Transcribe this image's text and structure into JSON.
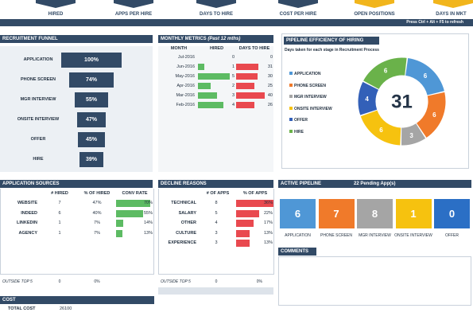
{
  "kpis": {
    "labels": [
      "HIRED",
      "APPS PER HIRE",
      "DAYS TO HIRE",
      "COST PER HIRE",
      "OPEN POSITIONS",
      "DAYS IN MKT"
    ],
    "shortcut": "Press Ctrl + Alt + F5 to refresh"
  },
  "funnel": {
    "title": "RECRUITMENT FUNNEL",
    "stages": [
      {
        "label": "APPLICATION",
        "value": "100%"
      },
      {
        "label": "PHONE SCREEN",
        "value": "74%"
      },
      {
        "label": "MGR INTERVIEW",
        "value": "55%"
      },
      {
        "label": "ONSITE INTERVIEW",
        "value": "47%"
      },
      {
        "label": "OFFER",
        "value": "45%"
      },
      {
        "label": "HIRE",
        "value": "39%"
      }
    ],
    "pct": [
      100,
      74,
      55,
      47,
      45,
      39
    ]
  },
  "metrics": {
    "title": "MONTHLY METRICS",
    "subtitle": "(Past 12 mths)",
    "headers": [
      "MONTH",
      "HIRED",
      "DAYS TO HIRE"
    ],
    "rows": [
      {
        "month": "Jul-2016",
        "hired": "0",
        "days": "0",
        "h": 0,
        "d": 0
      },
      {
        "month": "Jun-2016",
        "hired": "1",
        "days": "31",
        "h": 1,
        "d": 31
      },
      {
        "month": "May-2016",
        "hired": "5",
        "days": "30",
        "h": 5,
        "d": 30
      },
      {
        "month": "Apr-2016",
        "hired": "2",
        "days": "25",
        "h": 2,
        "d": 25
      },
      {
        "month": "Mar-2016",
        "hired": "3",
        "days": "40",
        "h": 3,
        "d": 40
      },
      {
        "month": "Feb-2016",
        "hired": "4",
        "days": "26",
        "h": 4,
        "d": 26
      }
    ]
  },
  "pipeline": {
    "title": "PIPELINE EFFICIENCY OF HIRING",
    "subtitle": "Days taken for each stage in Recruitment Process",
    "total": "31",
    "legend": [
      {
        "label": "APPLICATION",
        "color": "#4f97d6"
      },
      {
        "label": "PHONE SCREEN",
        "color": "#f07a2a"
      },
      {
        "label": "MGR INTERVIEW",
        "color": "#a5a5a5"
      },
      {
        "label": "ONSITE INTERVIEW",
        "color": "#f6c20f"
      },
      {
        "label": "OFFER",
        "color": "#3360b8"
      },
      {
        "label": "HIRE",
        "color": "#6ab24a"
      }
    ],
    "segments": [
      {
        "value": 6,
        "label": "6",
        "color": "#4f97d6"
      },
      {
        "value": 6,
        "label": "6",
        "color": "#f07a2a"
      },
      {
        "value": 3,
        "label": "3",
        "color": "#a5a5a5"
      },
      {
        "value": 6,
        "label": "6",
        "color": "#f6c20f"
      },
      {
        "value": 4,
        "label": "4",
        "color": "#3360b8"
      },
      {
        "value": 6,
        "label": "6",
        "color": "#6ab24a"
      }
    ]
  },
  "sources": {
    "title": "APPLICATION SOURCES",
    "headers": [
      "# HIRED",
      "% OF HIRED",
      "CONV RATE"
    ],
    "rows": [
      {
        "name": "WEBSITE",
        "hired": "7",
        "pct": "47%",
        "conv": "70%",
        "c": 70
      },
      {
        "name": "INDEED",
        "hired": "6",
        "pct": "40%",
        "conv": "55%",
        "c": 55
      },
      {
        "name": "LINKEDIN",
        "hired": "1",
        "pct": "7%",
        "conv": "14%",
        "c": 14
      },
      {
        "name": "AGENCY",
        "hired": "1",
        "pct": "7%",
        "conv": "13%",
        "c": 13
      }
    ],
    "outside": {
      "name": "OUTSIDE TOP 5",
      "hired": "0",
      "pct": "0%"
    }
  },
  "decline": {
    "title": "DECLINE REASONS",
    "headers": [
      "# OF APPS",
      "% OF APPS"
    ],
    "rows": [
      {
        "name": "TECHNICAL",
        "apps": "8",
        "pct": "36%",
        "p": 36
      },
      {
        "name": "SALARY",
        "apps": "5",
        "pct": "22%",
        "p": 22
      },
      {
        "name": "OTHER",
        "apps": "4",
        "pct": "17%",
        "p": 17
      },
      {
        "name": "CULTURE",
        "apps": "3",
        "pct": "13%",
        "p": 13
      },
      {
        "name": "EXPERIENCE",
        "apps": "3",
        "pct": "13%",
        "p": 13
      }
    ],
    "outside": {
      "name": "OUTSIDE TOP 5",
      "apps": "0",
      "pct": "0%"
    }
  },
  "active": {
    "title": "ACTIVE PIPELINE",
    "pending": "22 Pending App(s)",
    "cards": [
      {
        "value": "6",
        "label": "APPLICATION",
        "color": "#4f97d6"
      },
      {
        "value": "7",
        "label": "PHONE SCREEN",
        "color": "#f07a2a"
      },
      {
        "value": "8",
        "label": "MGR INTERVIEW",
        "color": "#a5a5a5"
      },
      {
        "value": "1",
        "label": "ONSITE INTERVIEW",
        "color": "#f6c20f"
      },
      {
        "value": "0",
        "label": "OFFER",
        "color": "#2b6fc5"
      }
    ]
  },
  "comments": {
    "title": "COMMENTS"
  },
  "cost": {
    "title": "COST",
    "label": "TOTAL COST",
    "value": "26100"
  }
}
